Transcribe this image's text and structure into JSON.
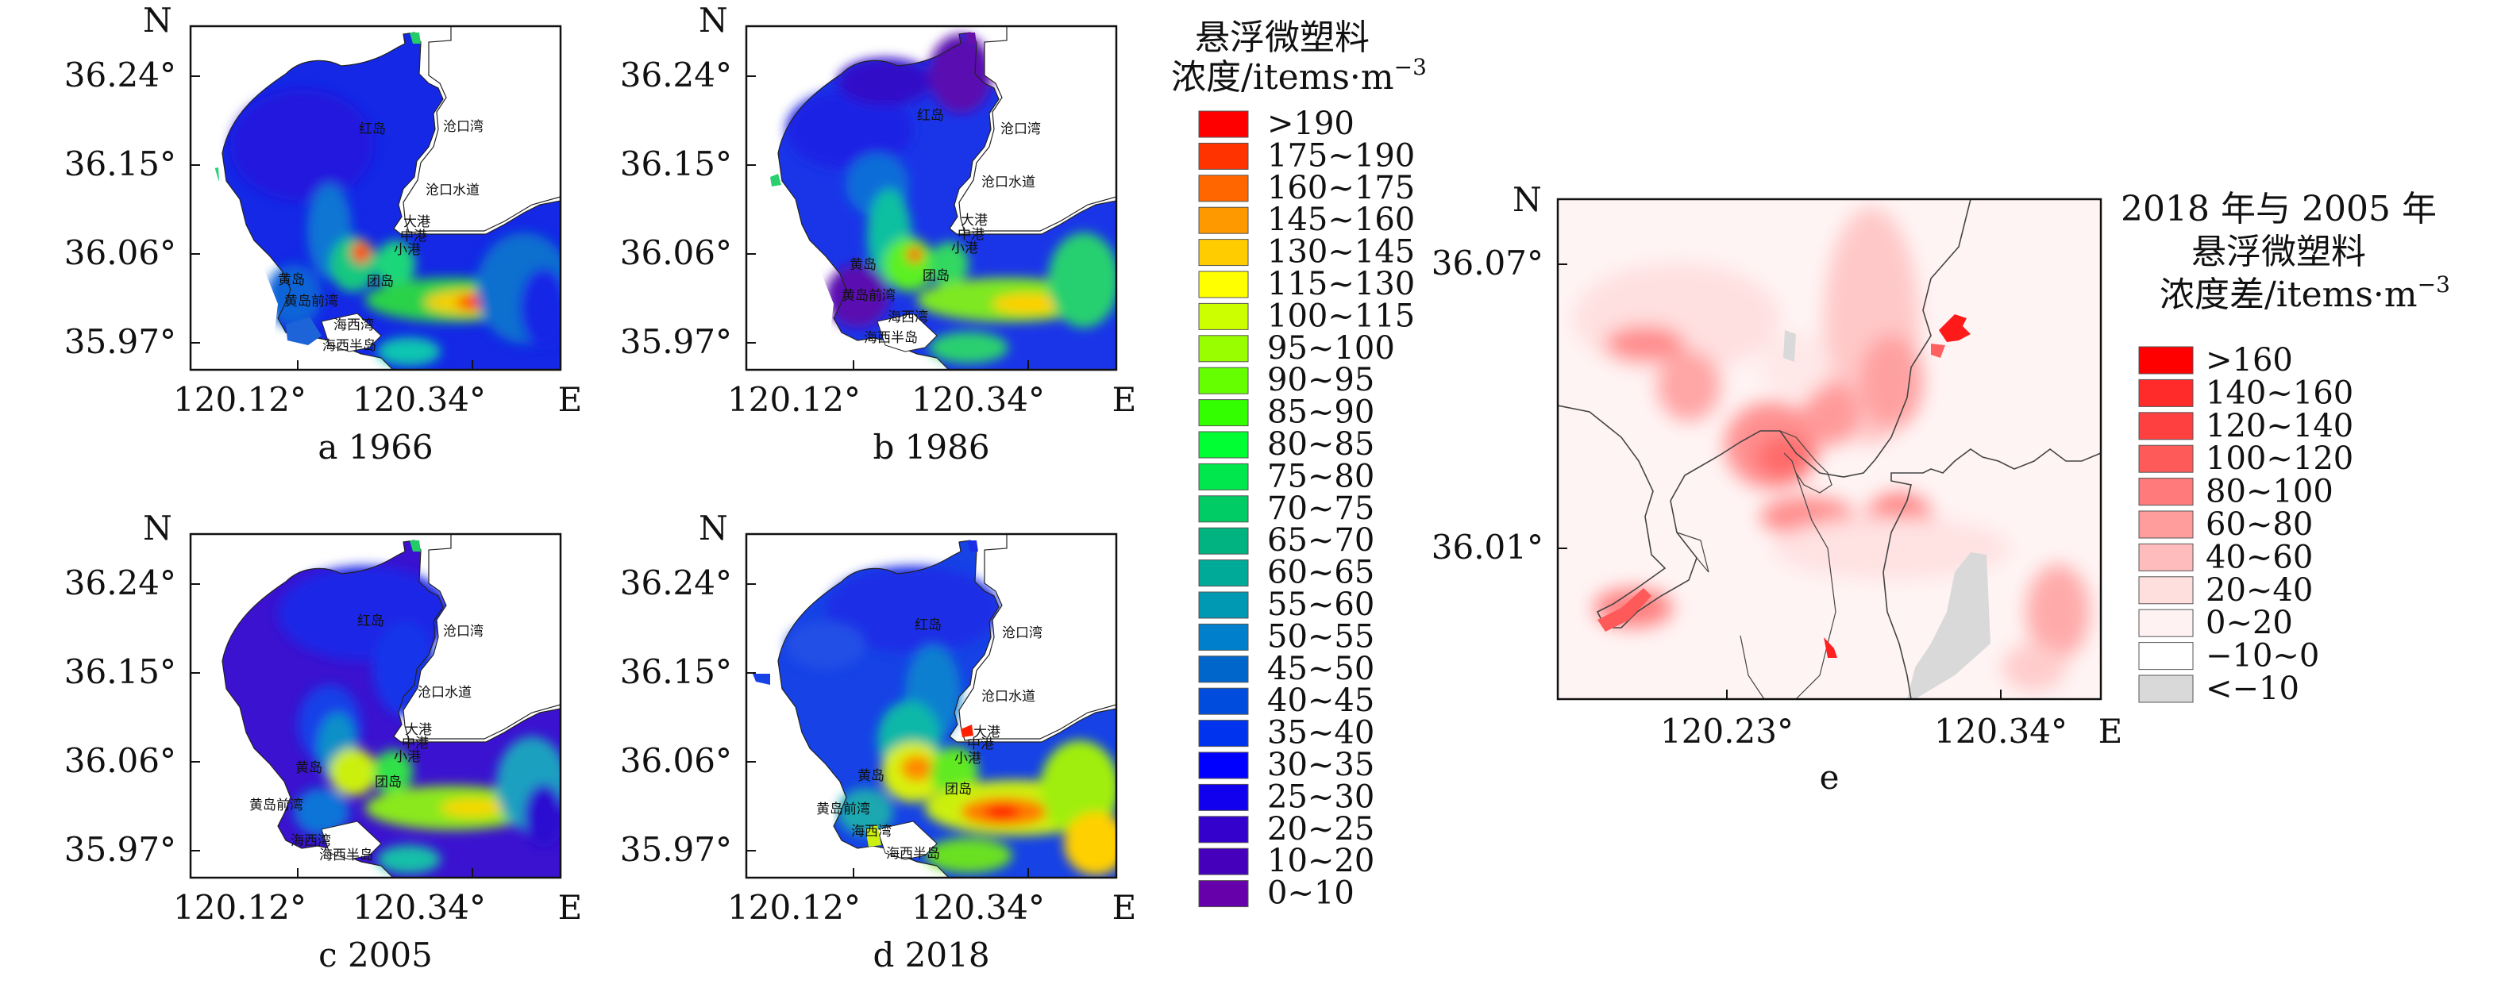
{
  "panels": [
    {
      "id": "a",
      "caption": "a 1966",
      "north": "N",
      "east": "E",
      "y_ticks": [
        "36.24°",
        "36.15°",
        "36.06°",
        "35.97°"
      ],
      "x_ticks": [
        "120.12°",
        "120.34°"
      ],
      "place_labels": [
        "红岛",
        "沧口湾",
        "沧口水道",
        "大港",
        "中港",
        "小港",
        "黄岛",
        "黄岛前湾",
        "团岛",
        "海西湾",
        "海西半岛"
      ]
    },
    {
      "id": "b",
      "caption": "b 1986",
      "north": "N",
      "east": "E",
      "y_ticks": [
        "36.24°",
        "36.15°",
        "36.06°",
        "35.97°"
      ],
      "x_ticks": [
        "120.12°",
        "120.34°"
      ],
      "place_labels": [
        "红岛",
        "沧口湾",
        "沧口水道",
        "大港",
        "中港",
        "小港",
        "黄岛",
        "黄岛前湾",
        "团岛",
        "海西湾",
        "海西半岛"
      ]
    },
    {
      "id": "c",
      "caption": "c 2005",
      "north": "N",
      "east": "E",
      "y_ticks": [
        "36.24°",
        "36.15°",
        "36.06°",
        "35.97°"
      ],
      "x_ticks": [
        "120.12°",
        "120.34°"
      ],
      "place_labels": [
        "红岛",
        "沧口湾",
        "沧口水道",
        "大港",
        "中港",
        "小港",
        "黄岛",
        "黄岛前湾",
        "团岛",
        "海西湾",
        "海西半岛"
      ]
    },
    {
      "id": "d",
      "caption": "d 2018",
      "north": "N",
      "east": "E",
      "y_ticks": [
        "36.24°",
        "36.15°",
        "36.06°",
        "35.97°"
      ],
      "x_ticks": [
        "120.12°",
        "120.34°"
      ],
      "place_labels": [
        "红岛",
        "沧口湾",
        "沧口水道",
        "大港",
        "中港",
        "小港",
        "黄岛",
        "黄岛前湾",
        "团岛",
        "海西湾",
        "海西半岛"
      ]
    },
    {
      "id": "e",
      "caption": "e",
      "north": "N",
      "east": "E",
      "y_ticks": [
        "36.07°",
        "36.01°"
      ],
      "x_ticks": [
        "120.23°",
        "120.34°"
      ]
    }
  ],
  "legend_concentration": {
    "title_line1": "悬浮微塑料",
    "title_line2": "浓度/items·m",
    "title_sup": "−3",
    "items": [
      {
        "label": ">190",
        "color": "#ff0000"
      },
      {
        "label": "175~190",
        "color": "#ff3300"
      },
      {
        "label": "160~175",
        "color": "#ff6600"
      },
      {
        "label": "145~160",
        "color": "#ff9900"
      },
      {
        "label": "130~145",
        "color": "#ffcc00"
      },
      {
        "label": "115~130",
        "color": "#ffff00"
      },
      {
        "label": "100~115",
        "color": "#ccff00"
      },
      {
        "label": "95~100",
        "color": "#99ff00"
      },
      {
        "label": "90~95",
        "color": "#66ff00"
      },
      {
        "label": "85~90",
        "color": "#33ff00"
      },
      {
        "label": "80~85",
        "color": "#00ff33"
      },
      {
        "label": "75~80",
        "color": "#00e64d"
      },
      {
        "label": "70~75",
        "color": "#00cc66"
      },
      {
        "label": "65~70",
        "color": "#00b380"
      },
      {
        "label": "60~65",
        "color": "#00aa99"
      },
      {
        "label": "55~60",
        "color": "#0099b3"
      },
      {
        "label": "50~55",
        "color": "#0080cc"
      },
      {
        "label": "45~50",
        "color": "#0066cc"
      },
      {
        "label": "40~45",
        "color": "#004ddd"
      },
      {
        "label": "35~40",
        "color": "#0033ee"
      },
      {
        "label": "30~35",
        "color": "#0000ff"
      },
      {
        "label": "25~30",
        "color": "#1100ee"
      },
      {
        "label": "20~25",
        "color": "#3300cc"
      },
      {
        "label": "10~20",
        "color": "#4400bb"
      },
      {
        "label": "0~10",
        "color": "#6600aa"
      }
    ]
  },
  "legend_difference": {
    "title_line1": "2018 年与 2005 年",
    "title_line2": "悬浮微塑料",
    "title_line3": "浓度差/items·m",
    "title_sup": "−3",
    "items": [
      {
        "label": ">160",
        "color": "#ff0000"
      },
      {
        "label": "140~160",
        "color": "#ff2a2a"
      },
      {
        "label": "120~140",
        "color": "#ff4040"
      },
      {
        "label": "100~120",
        "color": "#ff5a5a"
      },
      {
        "label": "80~100",
        "color": "#ff7a7a"
      },
      {
        "label": "60~80",
        "color": "#ff9c9c"
      },
      {
        "label": "40~60",
        "color": "#ffbcbc"
      },
      {
        "label": "20~40",
        "color": "#ffdede"
      },
      {
        "label": "0~20",
        "color": "#fff2f2"
      },
      {
        "label": "−10~0",
        "color": "#ffffff"
      },
      {
        "label": "<−10",
        "color": "#d9d9d9"
      }
    ]
  }
}
